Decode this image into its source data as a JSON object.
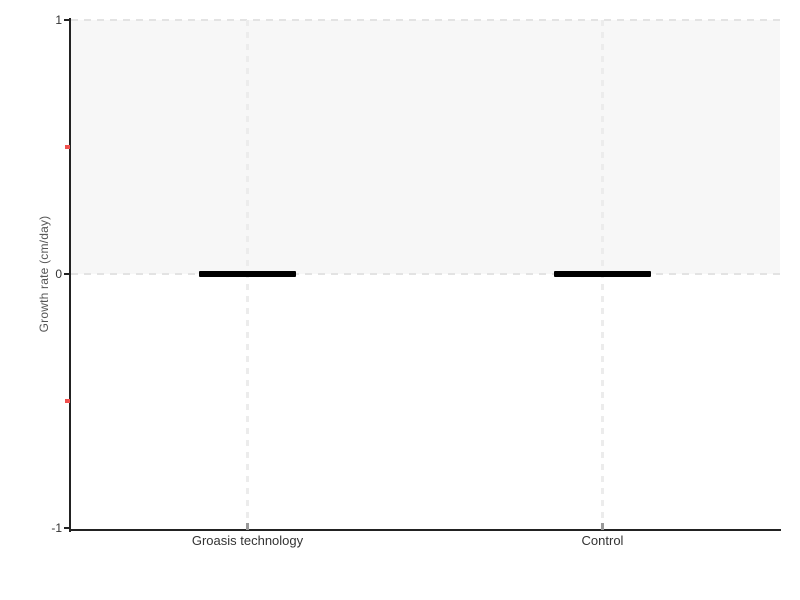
{
  "chart_data": {
    "type": "box",
    "categories": [
      "Groasis technology",
      "Control"
    ],
    "values": [
      0,
      0
    ],
    "marker": "thick horizontal line at value",
    "title": "",
    "xlabel": "",
    "ylabel": "Growth rate (cm/day)",
    "ylim": [
      -1,
      1
    ],
    "yticks": [
      {
        "value": 1,
        "label": "1"
      },
      {
        "value": 0,
        "label": "0"
      },
      {
        "value": -1,
        "label": "-1"
      }
    ],
    "yticks_minor": [
      0.5,
      -0.5
    ],
    "shaded_band": {
      "from": 0,
      "to": 1
    },
    "h_gridlines_at": [
      1,
      0
    ],
    "vertical_gridlines": "dashed line at each category",
    "legend": "none"
  },
  "colors": {
    "background": "#ffffff",
    "band_fill": "#f7f7f7",
    "h_dash_line": "#e3e3e3",
    "v_gridline": "#ececec",
    "axis": "#222222",
    "major_tick": "#222222",
    "tick_label": "#333333",
    "axis_label": "#555555",
    "minor_tick": "#f0514e",
    "x_tick": "#999999",
    "data_line": "#000000"
  }
}
